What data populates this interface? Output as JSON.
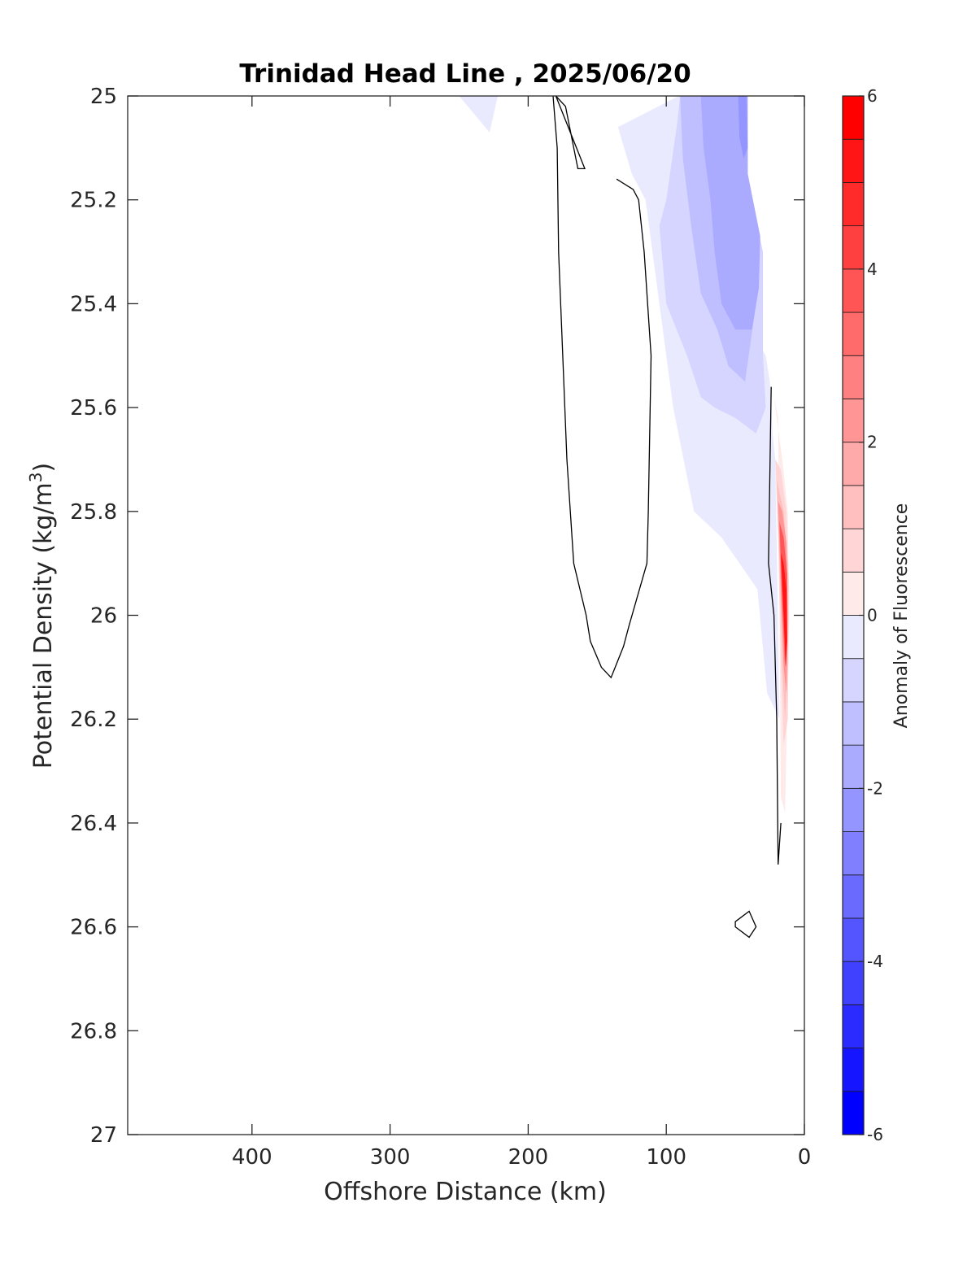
{
  "chart_data": {
    "type": "contour",
    "title": "Trinidad Head Line , 2025/06/20",
    "xlabel": "Offshore Distance (km)",
    "ylabel_parts": {
      "base": "Potential Density (kg/m",
      "sup": "3",
      "end": ")"
    },
    "xlim": [
      490,
      0
    ],
    "ylim": [
      25,
      27
    ],
    "x_reversed": true,
    "y_reversed": true,
    "x_ticks": [
      400,
      300,
      200,
      100,
      0
    ],
    "x_tick_labels": [
      "400",
      "300",
      "200",
      "100",
      "0"
    ],
    "y_ticks": [
      25,
      25.2,
      25.4,
      25.6,
      25.8,
      26,
      26.2,
      26.4,
      26.6,
      26.8,
      27
    ],
    "y_tick_labels": [
      "25",
      "25.2",
      "25.4",
      "25.6",
      "25.8",
      "26",
      "26.2",
      "26.4",
      "26.6",
      "26.8",
      "27"
    ],
    "colorbar": {
      "label": "Anomaly of Fluorescence",
      "range": [
        -6,
        6
      ],
      "step": 0.5,
      "ticks": [
        6,
        4,
        2,
        0,
        -2,
        -4,
        -6
      ],
      "tick_labels": [
        "6",
        "4",
        "2",
        "0",
        "-2",
        "-4",
        "-6"
      ],
      "min_color": "#0000ff",
      "max_color": "#ff0000",
      "mid_color": "#ffffff"
    },
    "filled_regions": [
      {
        "level": -0.5,
        "points": [
          [
            250,
            25
          ],
          [
            222,
            25
          ],
          [
            228,
            25.07
          ]
        ]
      },
      {
        "level": -0.5,
        "points": [
          [
            91,
            25
          ],
          [
            50,
            25
          ],
          [
            50,
            25.4
          ],
          [
            28,
            25.5
          ],
          [
            25,
            25.55
          ],
          [
            23,
            25.65
          ],
          [
            21,
            25.7
          ],
          [
            18,
            26.2
          ],
          [
            27,
            26.15
          ],
          [
            34,
            25.95
          ],
          [
            47,
            25.9
          ],
          [
            60,
            25.85
          ],
          [
            80,
            25.8
          ],
          [
            95,
            25.6
          ],
          [
            115,
            25.2
          ],
          [
            125,
            25.15
          ],
          [
            135,
            25.06
          ]
        ]
      },
      {
        "level": -1.0,
        "points": [
          [
            90,
            25
          ],
          [
            55,
            25
          ],
          [
            30,
            25.3
          ],
          [
            30,
            25.5
          ],
          [
            28,
            25.6
          ],
          [
            35,
            25.65
          ],
          [
            50,
            25.62
          ],
          [
            65,
            25.6
          ],
          [
            75,
            25.58
          ],
          [
            85,
            25.5
          ],
          [
            100,
            25.4
          ],
          [
            105,
            25.25
          ],
          [
            100,
            25.2
          ],
          [
            92,
            25.05
          ]
        ]
      },
      {
        "level": -1.5,
        "points": [
          [
            90,
            25
          ],
          [
            60,
            25
          ],
          [
            42,
            25.12
          ],
          [
            35,
            25.4
          ],
          [
            43,
            25.55
          ],
          [
            55,
            25.52
          ],
          [
            63,
            25.45
          ],
          [
            75,
            25.38
          ],
          [
            82,
            25.25
          ],
          [
            88,
            25.12
          ]
        ]
      },
      {
        "level": -2.0,
        "points": [
          [
            75,
            25
          ],
          [
            41,
            25
          ],
          [
            41,
            25.15
          ],
          [
            32,
            25.27
          ],
          [
            33,
            25.37
          ],
          [
            38,
            25.45
          ],
          [
            50,
            25.45
          ],
          [
            60,
            25.4
          ],
          [
            65,
            25.3
          ],
          [
            68,
            25.2
          ],
          [
            73,
            25.1
          ]
        ]
      },
      {
        "level": -2.5,
        "points": [
          [
            48,
            25
          ],
          [
            42,
            25
          ],
          [
            41,
            25.1
          ],
          [
            44,
            25.12
          ],
          [
            47,
            25.08
          ]
        ]
      },
      {
        "level": 0.5,
        "points": [
          [
            22,
            25.58
          ],
          [
            19,
            25.62
          ],
          [
            18,
            26.0
          ],
          [
            17,
            26.35
          ],
          [
            14,
            26.38
          ],
          [
            11,
            26.0
          ],
          [
            12,
            25.8
          ],
          [
            16,
            25.7
          ]
        ]
      },
      {
        "level": 1.0,
        "points": [
          [
            21,
            25.7
          ],
          [
            19,
            25.85
          ],
          [
            17,
            26.1
          ],
          [
            15,
            26.25
          ],
          [
            12,
            26.2
          ],
          [
            11,
            25.95
          ],
          [
            13,
            25.8
          ],
          [
            17,
            25.72
          ]
        ]
      },
      {
        "level": 1.5,
        "points": [
          [
            20,
            25.74
          ],
          [
            18,
            25.9
          ],
          [
            16,
            26.1
          ],
          [
            14,
            26.2
          ],
          [
            12,
            26.1
          ],
          [
            12,
            25.9
          ],
          [
            15,
            25.8
          ]
        ]
      },
      {
        "level": 2.5,
        "points": [
          [
            19,
            25.78
          ],
          [
            17,
            25.95
          ],
          [
            15,
            26.1
          ],
          [
            13,
            26.15
          ],
          [
            12,
            26.0
          ],
          [
            13,
            25.86
          ],
          [
            16,
            25.8
          ]
        ]
      },
      {
        "level": 4.0,
        "points": [
          [
            18,
            25.82
          ],
          [
            16,
            25.98
          ],
          [
            14,
            26.1
          ],
          [
            12.5,
            26.05
          ],
          [
            12.5,
            25.92
          ],
          [
            15,
            25.85
          ]
        ]
      },
      {
        "level": 5.5,
        "points": [
          [
            17,
            25.88
          ],
          [
            15,
            26.0
          ],
          [
            13.5,
            26.1
          ],
          [
            12.5,
            26.05
          ],
          [
            13,
            25.95
          ],
          [
            15,
            25.9
          ]
        ]
      }
    ],
    "zero_contours": [
      {
        "closed": true,
        "points": [
          [
            180,
            25
          ],
          [
            173,
            25.02
          ],
          [
            164,
            25.14
          ],
          [
            159,
            25.14
          ]
        ]
      },
      {
        "closed": false,
        "points": [
          [
            182,
            25
          ],
          [
            179,
            25.1
          ],
          [
            178,
            25.3
          ],
          [
            175,
            25.5
          ],
          [
            172,
            25.7
          ],
          [
            167,
            25.9
          ],
          [
            158,
            26
          ],
          [
            155,
            26.05
          ],
          [
            147,
            26.1
          ],
          [
            140,
            26.12
          ],
          [
            131,
            26.06
          ],
          [
            127,
            26.02
          ],
          [
            114,
            25.9
          ],
          [
            113,
            25.8
          ],
          [
            111,
            25.5
          ],
          [
            116,
            25.3
          ],
          [
            120,
            25.2
          ],
          [
            124,
            25.18
          ],
          [
            136,
            25.16
          ]
        ]
      },
      {
        "closed": false,
        "points": [
          [
            24,
            25.56
          ],
          [
            26,
            25.9
          ],
          [
            22,
            26.0
          ],
          [
            20,
            26.2
          ],
          [
            19,
            26.48
          ],
          [
            17,
            26.4
          ]
        ]
      },
      {
        "closed": true,
        "points": [
          [
            50,
            26.59
          ],
          [
            40,
            26.57
          ],
          [
            35,
            26.6
          ],
          [
            40,
            26.62
          ],
          [
            50,
            26.6
          ]
        ]
      }
    ]
  }
}
